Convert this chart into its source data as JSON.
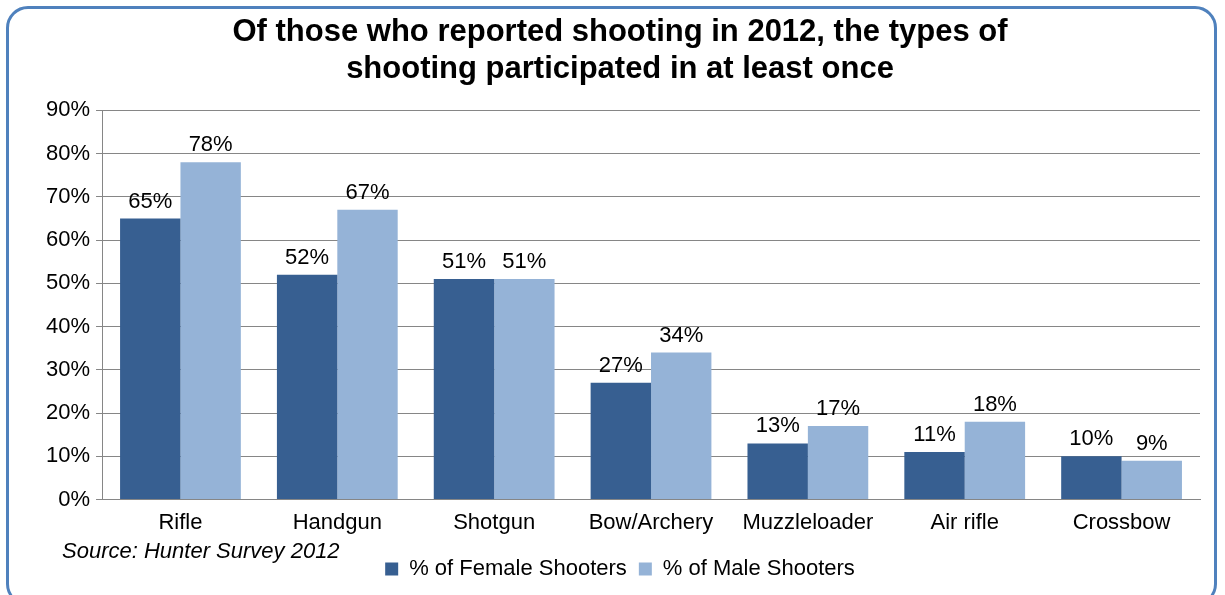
{
  "chart_data": {
    "type": "bar",
    "title": "Of those who reported shooting in 2012, the types of shooting participated in at least once",
    "categories": [
      "Rifle",
      "Handgun",
      "Shotgun",
      "Bow/Archery",
      "Muzzleloader",
      "Air rifle",
      "Crossbow"
    ],
    "series": [
      {
        "name": "% of Female Shooters",
        "color": "#375f91",
        "values": [
          65,
          52,
          51,
          27,
          13,
          11,
          10
        ],
        "value_labels": [
          "65%",
          "52%",
          "51%",
          "27%",
          "13%",
          "11%",
          "10%"
        ]
      },
      {
        "name": "% of Male Shooters",
        "color": "#95b3d7",
        "values": [
          78,
          67,
          51,
          34,
          17,
          18,
          9
        ],
        "value_labels": [
          "78%",
          "67%",
          "51%",
          "34%",
          "17%",
          "18%",
          "9%"
        ]
      }
    ],
    "ylim": [
      0,
      90
    ],
    "yticks": [
      {
        "value": 0,
        "label": "0%"
      },
      {
        "value": 10,
        "label": "10%"
      },
      {
        "value": 20,
        "label": "20%"
      },
      {
        "value": 30,
        "label": "30%"
      },
      {
        "value": 40,
        "label": "40%"
      },
      {
        "value": 50,
        "label": "50%"
      },
      {
        "value": 60,
        "label": "60%"
      },
      {
        "value": 70,
        "label": "70%"
      },
      {
        "value": 80,
        "label": "80%"
      },
      {
        "value": 90,
        "label": "90%"
      }
    ],
    "grid": "y",
    "legend": "bottom",
    "annotations": [
      "Source: Hunter Survey 2012"
    ]
  }
}
